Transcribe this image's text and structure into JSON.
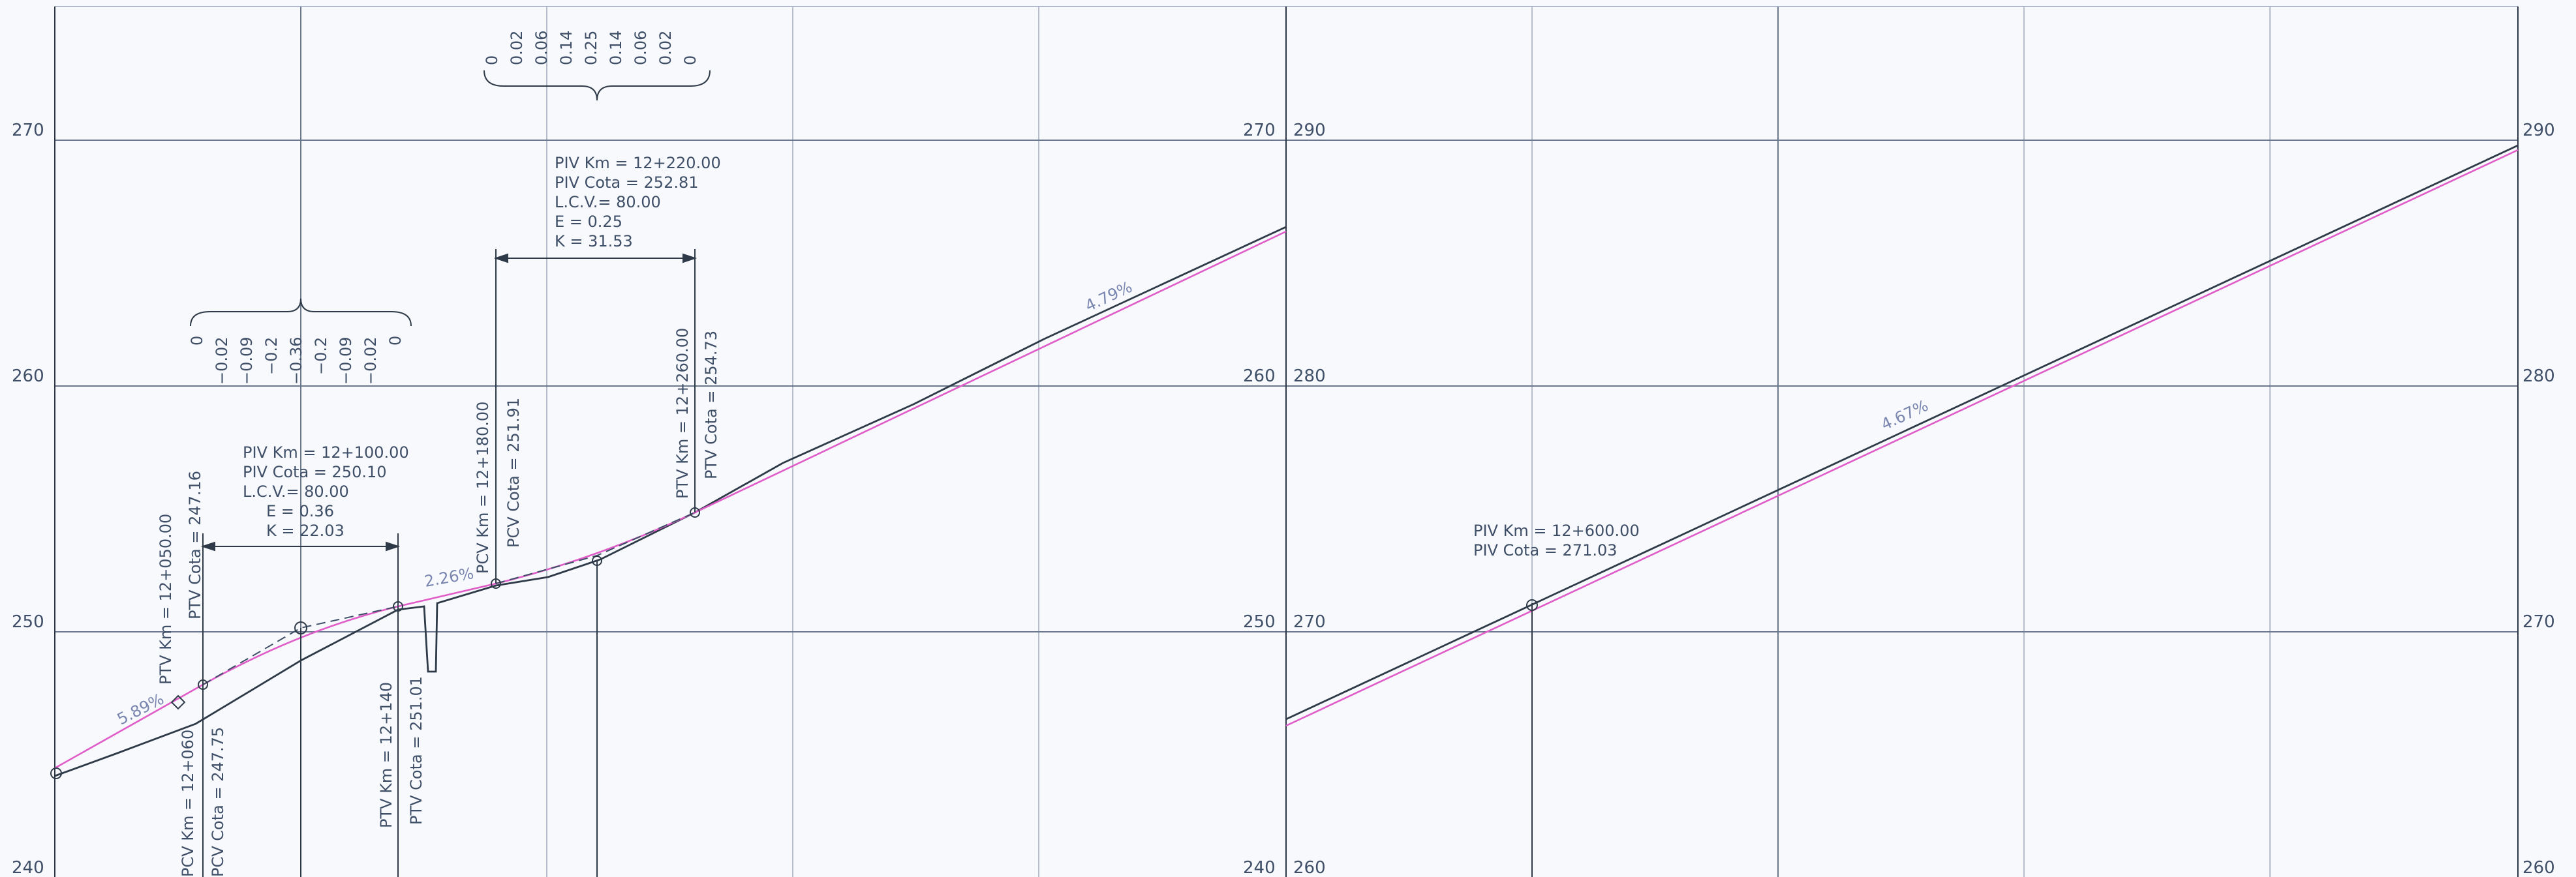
{
  "panels": [
    {
      "id": "left",
      "elev_labels": [
        "270",
        "260",
        "250",
        "240"
      ],
      "elev_values": [
        270,
        260,
        250,
        240
      ],
      "right_labels": [
        "270",
        "260",
        "250",
        "240"
      ],
      "grades": [
        "5.89%",
        "2.26%",
        "4.79%"
      ],
      "stations": [
        {
          "id": "ptv1",
          "type": "PTV",
          "km": "PTV Km = 12+050.00",
          "cota": "PTV Cota = 247.16"
        },
        {
          "id": "pcv1",
          "type": "PCV",
          "km": "PCV Km = 12+060",
          "cota": "PCV Cota = 247.75"
        },
        {
          "id": "ptv2",
          "type": "PTV",
          "km": "PTV Km = 12+140",
          "cota": "PTV Cota = 251.01"
        },
        {
          "id": "pcv2",
          "type": "PCV",
          "km": "PCV Km = 12+180.00",
          "cota": "PCV Cota = 251.91"
        },
        {
          "id": "ptv3",
          "type": "PTV",
          "km": "PTV Km = 12+260.00",
          "cota": "PTV Cota = 254.73"
        }
      ],
      "curves": [
        {
          "id": "curve1",
          "piv_km": "PIV Km = 12+100.00",
          "piv_cota": "PIV Cota = 250.10",
          "lcv": "L.C.V.= 80.00",
          "e": "E = 0.36",
          "k": "K = 22.03",
          "ordinates": [
            "0",
            "−0.02",
            "−0.09",
            "−0.2",
            "−0.36",
            "−0.2",
            "−0.09",
            "−0.02",
            "0"
          ]
        },
        {
          "id": "curve2",
          "piv_km": "PIV Km = 12+220.00",
          "piv_cota": "PIV Cota = 252.81",
          "lcv": "L.C.V.= 80.00",
          "e": "E = 0.25",
          "k": "K = 31.53",
          "ordinates": [
            "0",
            "0.02",
            "0.06",
            "0.14",
            "0.25",
            "0.14",
            "0.06",
            "0.02",
            "0"
          ]
        }
      ]
    },
    {
      "id": "right",
      "elev_labels": [
        "290",
        "280",
        "270",
        "260"
      ],
      "elev_values": [
        290,
        280,
        270,
        260
      ],
      "right_labels": [
        "290",
        "280",
        "270",
        "260"
      ],
      "grades": [
        "4.67%"
      ],
      "piv": {
        "piv_km": "PIV Km = 12+600.00",
        "piv_cota": "PIV Cota = 271.03"
      }
    }
  ],
  "colors": {
    "design_grade": "#e05cc8",
    "terrain": "#2f3a48",
    "grid": "#9aa5bb",
    "text": "#3f4f68"
  }
}
